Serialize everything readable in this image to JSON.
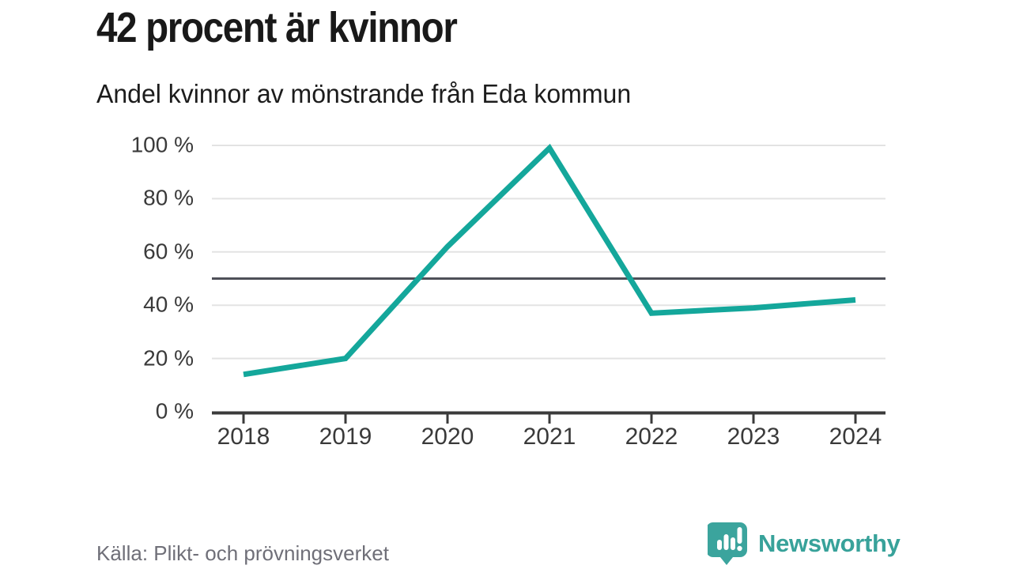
{
  "title": "42 procent är kvinnor",
  "subtitle": "Andel kvinnor av mönstrande från Eda kommun",
  "source": "Källa: Plikt- och prövningsverket",
  "brand": {
    "name": "Newsworthy",
    "icon": "newsworthy-bubble-chart-icon",
    "text_color": "#38a29a",
    "icon_color": "#3ba49d"
  },
  "colors": {
    "line": "#14a79b",
    "gridline": "#e3e3e3",
    "reference_line": "#4e5058",
    "axis": "#3b3b3b",
    "title_text": "#191919",
    "axis_text": "#3a3a3a",
    "source_text": "#6f6f78",
    "background": "#ffffff"
  },
  "chart_data": {
    "type": "line",
    "title": "42 procent är kvinnor",
    "subtitle": "Andel kvinnor av mönstrande från Eda kommun",
    "x": [
      "2018",
      "2019",
      "2020",
      "2021",
      "2022",
      "2023",
      "2024"
    ],
    "series": [
      {
        "name": "Andel kvinnor av mönstrande, Eda kommun",
        "values": [
          14,
          20,
          62,
          99,
          37,
          39,
          42
        ]
      }
    ],
    "xlabel": "",
    "ylabel": "",
    "ylim": [
      0,
      100
    ],
    "yticks": [
      0,
      20,
      40,
      60,
      80,
      100
    ],
    "ytick_labels": [
      "0 %",
      "20 %",
      "40 %",
      "60 %",
      "80 %",
      "100 %"
    ],
    "reference_line_y": 50,
    "grid": "horizontal",
    "legend_position": "none",
    "line_color": "#14a79b"
  }
}
